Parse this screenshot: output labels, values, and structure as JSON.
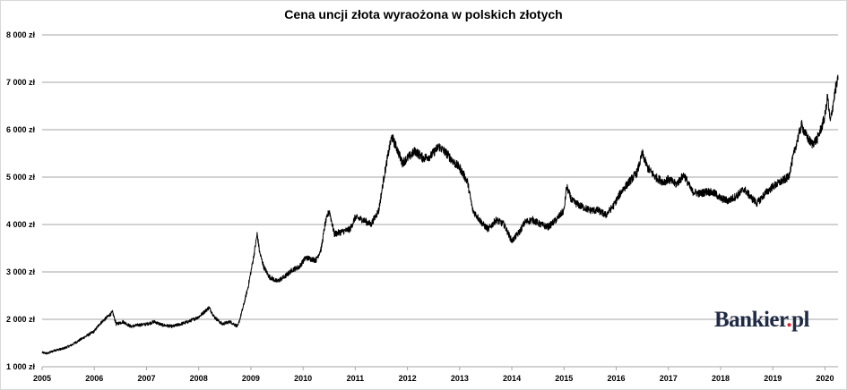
{
  "chart_data": {
    "type": "line",
    "title": "Cena uncji złota wyraożona w polskich złotych",
    "xlabel": "",
    "ylabel": "",
    "ylim": [
      1000,
      8000
    ],
    "xlim": [
      2005.0,
      2020.25
    ],
    "grid": "horizontal",
    "legend": "none",
    "y_ticks": [
      "1 000 zł",
      "2 000 zł",
      "3 000 zł",
      "4 000 zł",
      "5 000 zł",
      "6 000 zł",
      "7 000 zł",
      "8 000 zł"
    ],
    "x_ticks": [
      "2005",
      "2006",
      "2007",
      "2008",
      "2009",
      "2010",
      "2011",
      "2012",
      "2013",
      "2014",
      "2015",
      "2016",
      "2017",
      "2018",
      "2019",
      "2020"
    ],
    "line_color": "#000000",
    "series": [
      {
        "x": [
          2005.0,
          2005.1,
          2005.25,
          2005.4,
          2005.55,
          2005.7,
          2005.85,
          2006.0,
          2006.1,
          2006.2,
          2006.35,
          2006.42,
          2006.55,
          2006.7,
          2006.85,
          2007.0,
          2007.15,
          2007.3,
          2007.5,
          2007.65,
          2007.8,
          2008.0,
          2008.1,
          2008.2,
          2008.3,
          2008.45,
          2008.6,
          2008.75,
          2008.85,
          2008.95,
          2009.05,
          2009.12,
          2009.17,
          2009.25,
          2009.35,
          2009.5,
          2009.65,
          2009.8,
          2009.92,
          2010.05,
          2010.25,
          2010.35,
          2010.42,
          2010.5,
          2010.6,
          2010.75,
          2010.9,
          2011.0,
          2011.15,
          2011.3,
          2011.45,
          2011.55,
          2011.65,
          2011.7,
          2011.8,
          2011.9,
          2012.0,
          2012.15,
          2012.3,
          2012.45,
          2012.6,
          2012.75,
          2012.9,
          2013.0,
          2013.15,
          2013.25,
          2013.35,
          2013.45,
          2013.55,
          2013.7,
          2013.85,
          2014.0,
          2014.15,
          2014.25,
          2014.4,
          2014.55,
          2014.7,
          2014.85,
          2015.0,
          2015.05,
          2015.15,
          2015.3,
          2015.5,
          2015.65,
          2015.8,
          2015.95,
          2016.1,
          2016.25,
          2016.4,
          2016.5,
          2016.6,
          2016.75,
          2016.9,
          2017.0,
          2017.15,
          2017.3,
          2017.45,
          2017.6,
          2017.75,
          2017.9,
          2018.0,
          2018.15,
          2018.3,
          2018.45,
          2018.6,
          2018.7,
          2018.85,
          2019.0,
          2019.15,
          2019.3,
          2019.45,
          2019.55,
          2019.65,
          2019.75,
          2019.85,
          2019.95,
          2020.0,
          2020.05,
          2020.1,
          2020.15,
          2020.2,
          2020.25
        ],
        "y": [
          1300,
          1280,
          1350,
          1380,
          1450,
          1550,
          1650,
          1750,
          1900,
          2000,
          2150,
          1900,
          1950,
          1850,
          1880,
          1900,
          1950,
          1880,
          1850,
          1900,
          1950,
          2050,
          2150,
          2250,
          2050,
          1900,
          1950,
          1850,
          2250,
          2700,
          3300,
          3800,
          3400,
          3100,
          2900,
          2800,
          2900,
          3050,
          3100,
          3300,
          3250,
          3500,
          4000,
          4300,
          3800,
          3850,
          3900,
          4150,
          4100,
          4000,
          4300,
          5000,
          5600,
          5850,
          5600,
          5300,
          5400,
          5550,
          5400,
          5450,
          5650,
          5500,
          5300,
          5200,
          4900,
          4300,
          4150,
          4000,
          3900,
          4100,
          4000,
          3650,
          3850,
          4050,
          4100,
          4000,
          3950,
          4100,
          4300,
          4800,
          4500,
          4400,
          4300,
          4300,
          4200,
          4400,
          4700,
          4900,
          5100,
          5500,
          5200,
          5000,
          4900,
          4950,
          4850,
          5050,
          4700,
          4650,
          4700,
          4650,
          4550,
          4500,
          4600,
          4750,
          4550,
          4450,
          4650,
          4800,
          4900,
          5000,
          5700,
          6100,
          5850,
          5700,
          5800,
          6100,
          6300,
          6700,
          6150,
          6500,
          6850,
          7050
        ]
      }
    ]
  },
  "logo": {
    "text": "Bankier",
    "dot": ".",
    "suffix": "pl"
  }
}
